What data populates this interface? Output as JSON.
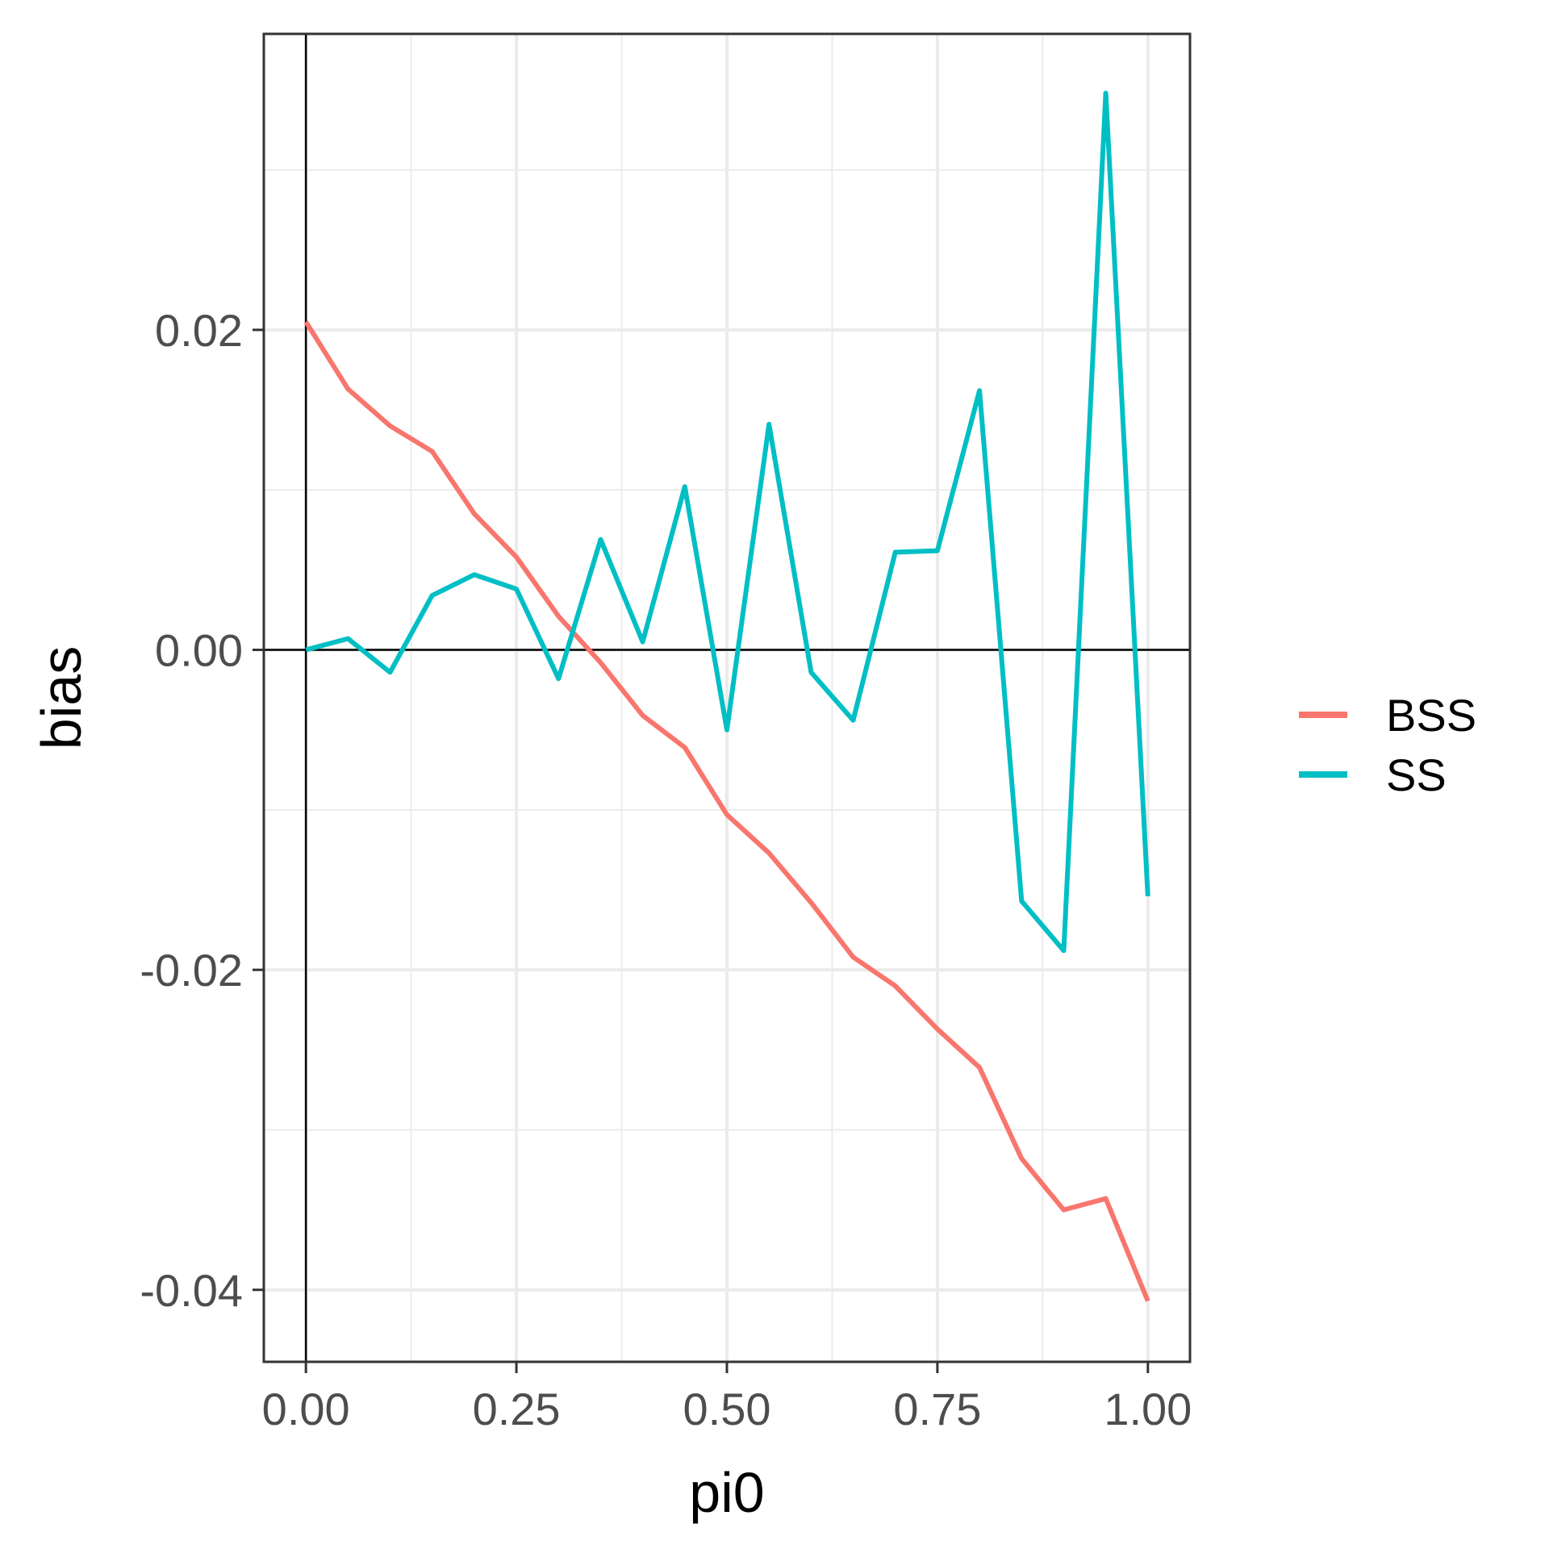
{
  "chart_data": {
    "type": "line",
    "xlabel": "pi0",
    "ylabel": "bias",
    "xlim": [
      -0.05,
      1.05
    ],
    "ylim": [
      -0.0445,
      0.0385
    ],
    "x_ticks": [
      0.0,
      0.25,
      0.5,
      0.75,
      1.0
    ],
    "x_tick_labels": [
      "0.00",
      "0.25",
      "0.50",
      "0.75",
      "1.00"
    ],
    "y_ticks": [
      -0.04,
      -0.02,
      0.0,
      0.02
    ],
    "y_tick_labels": [
      "-0.04",
      "-0.02",
      "0.00",
      "0.02"
    ],
    "reference_lines": {
      "x": 0,
      "y": 0
    },
    "grid": true,
    "legend": "right",
    "x": [
      0.0,
      0.05,
      0.1,
      0.15,
      0.2,
      0.25,
      0.3,
      0.35,
      0.4,
      0.45,
      0.5,
      0.55,
      0.6,
      0.65,
      0.7,
      0.75,
      0.8,
      0.85,
      0.9,
      0.95,
      1.0
    ],
    "series": [
      {
        "name": "BSS",
        "color": "#F8766D",
        "values": [
          0.0205,
          0.0163,
          0.014,
          0.0124,
          0.0085,
          0.0058,
          0.0021,
          -0.0008,
          -0.0041,
          -0.0061,
          -0.0103,
          -0.0127,
          -0.0158,
          -0.0192,
          -0.021,
          -0.0237,
          -0.0261,
          -0.0318,
          -0.035,
          -0.0343,
          -0.0407
        ]
      },
      {
        "name": "SS",
        "color": "#00BFC4",
        "values": [
          0.0,
          0.0007,
          -0.0014,
          0.0034,
          0.0047,
          0.0038,
          -0.0018,
          0.0069,
          0.0005,
          0.0102,
          -0.005,
          0.0141,
          -0.0014,
          -0.0044,
          0.0061,
          0.0062,
          0.0162,
          -0.0157,
          -0.0188,
          0.0348,
          -0.0154
        ]
      }
    ]
  }
}
